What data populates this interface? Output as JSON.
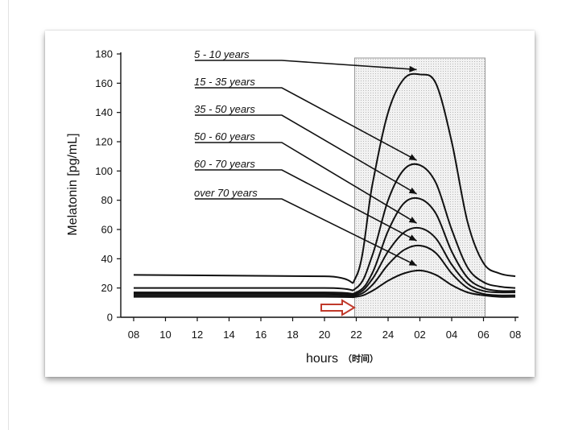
{
  "chart_data": {
    "type": "line",
    "xlabel": "hours",
    "xlabel_suffix": "（时间）",
    "ylabel": "Melatonin [pg/mL]",
    "ylim": [
      0,
      180
    ],
    "yticks": [
      0,
      20,
      40,
      60,
      80,
      100,
      120,
      140,
      160,
      180
    ],
    "xticks": [
      "08",
      "10",
      "12",
      "14",
      "16",
      "18",
      "20",
      "22",
      "24",
      "02",
      "04",
      "06",
      "08"
    ],
    "shaded_interval": [
      "22",
      "06"
    ],
    "arrow_color": "#c0392b",
    "series": [
      {
        "name": "5 - 10 years",
        "points": [
          [
            "08",
            29
          ],
          [
            "20",
            28
          ],
          [
            "22",
            28
          ],
          [
            "23",
            90
          ],
          [
            "24",
            140
          ],
          [
            "01",
            163
          ],
          [
            "02",
            166
          ],
          [
            "03",
            160
          ],
          [
            "04",
            120
          ],
          [
            "05",
            65
          ],
          [
            "06",
            37
          ],
          [
            "07",
            30
          ],
          [
            "08",
            28
          ]
        ]
      },
      {
        "name": "15 - 35 years",
        "points": [
          [
            "08",
            20
          ],
          [
            "20",
            20
          ],
          [
            "22",
            20
          ],
          [
            "23",
            42
          ],
          [
            "24",
            80
          ],
          [
            "01",
            101
          ],
          [
            "02",
            104
          ],
          [
            "03",
            92
          ],
          [
            "04",
            60
          ],
          [
            "05",
            34
          ],
          [
            "06",
            24
          ],
          [
            "07",
            21
          ],
          [
            "08",
            20
          ]
        ]
      },
      {
        "name": "35 - 50 years",
        "points": [
          [
            "08",
            17
          ],
          [
            "20",
            17
          ],
          [
            "22",
            17
          ],
          [
            "23",
            30
          ],
          [
            "24",
            59
          ],
          [
            "01",
            78
          ],
          [
            "02",
            81
          ],
          [
            "03",
            71
          ],
          [
            "04",
            45
          ],
          [
            "05",
            27
          ],
          [
            "06",
            20
          ],
          [
            "07",
            18
          ],
          [
            "08",
            18
          ]
        ]
      },
      {
        "name": "50 - 60 years",
        "points": [
          [
            "08",
            16
          ],
          [
            "20",
            16
          ],
          [
            "22",
            16
          ],
          [
            "23",
            26
          ],
          [
            "24",
            45
          ],
          [
            "01",
            58
          ],
          [
            "02",
            61
          ],
          [
            "03",
            54
          ],
          [
            "04",
            36
          ],
          [
            "05",
            23
          ],
          [
            "06",
            18
          ],
          [
            "07",
            17
          ],
          [
            "08",
            17
          ]
        ]
      },
      {
        "name": "60 - 70 years",
        "points": [
          [
            "08",
            15
          ],
          [
            "20",
            15
          ],
          [
            "22",
            15
          ],
          [
            "23",
            22
          ],
          [
            "24",
            36
          ],
          [
            "01",
            46
          ],
          [
            "02",
            49
          ],
          [
            "03",
            44
          ],
          [
            "04",
            30
          ],
          [
            "05",
            20
          ],
          [
            "06",
            16
          ],
          [
            "07",
            15
          ],
          [
            "08",
            15
          ]
        ]
      },
      {
        "name": "over 70 years",
        "points": [
          [
            "08",
            14
          ],
          [
            "20",
            14
          ],
          [
            "22",
            14
          ],
          [
            "23",
            18
          ],
          [
            "24",
            25
          ],
          [
            "01",
            30
          ],
          [
            "02",
            32
          ],
          [
            "03",
            29
          ],
          [
            "04",
            22
          ],
          [
            "05",
            17
          ],
          [
            "06",
            15
          ],
          [
            "07",
            14
          ],
          [
            "08",
            14
          ]
        ]
      }
    ]
  }
}
